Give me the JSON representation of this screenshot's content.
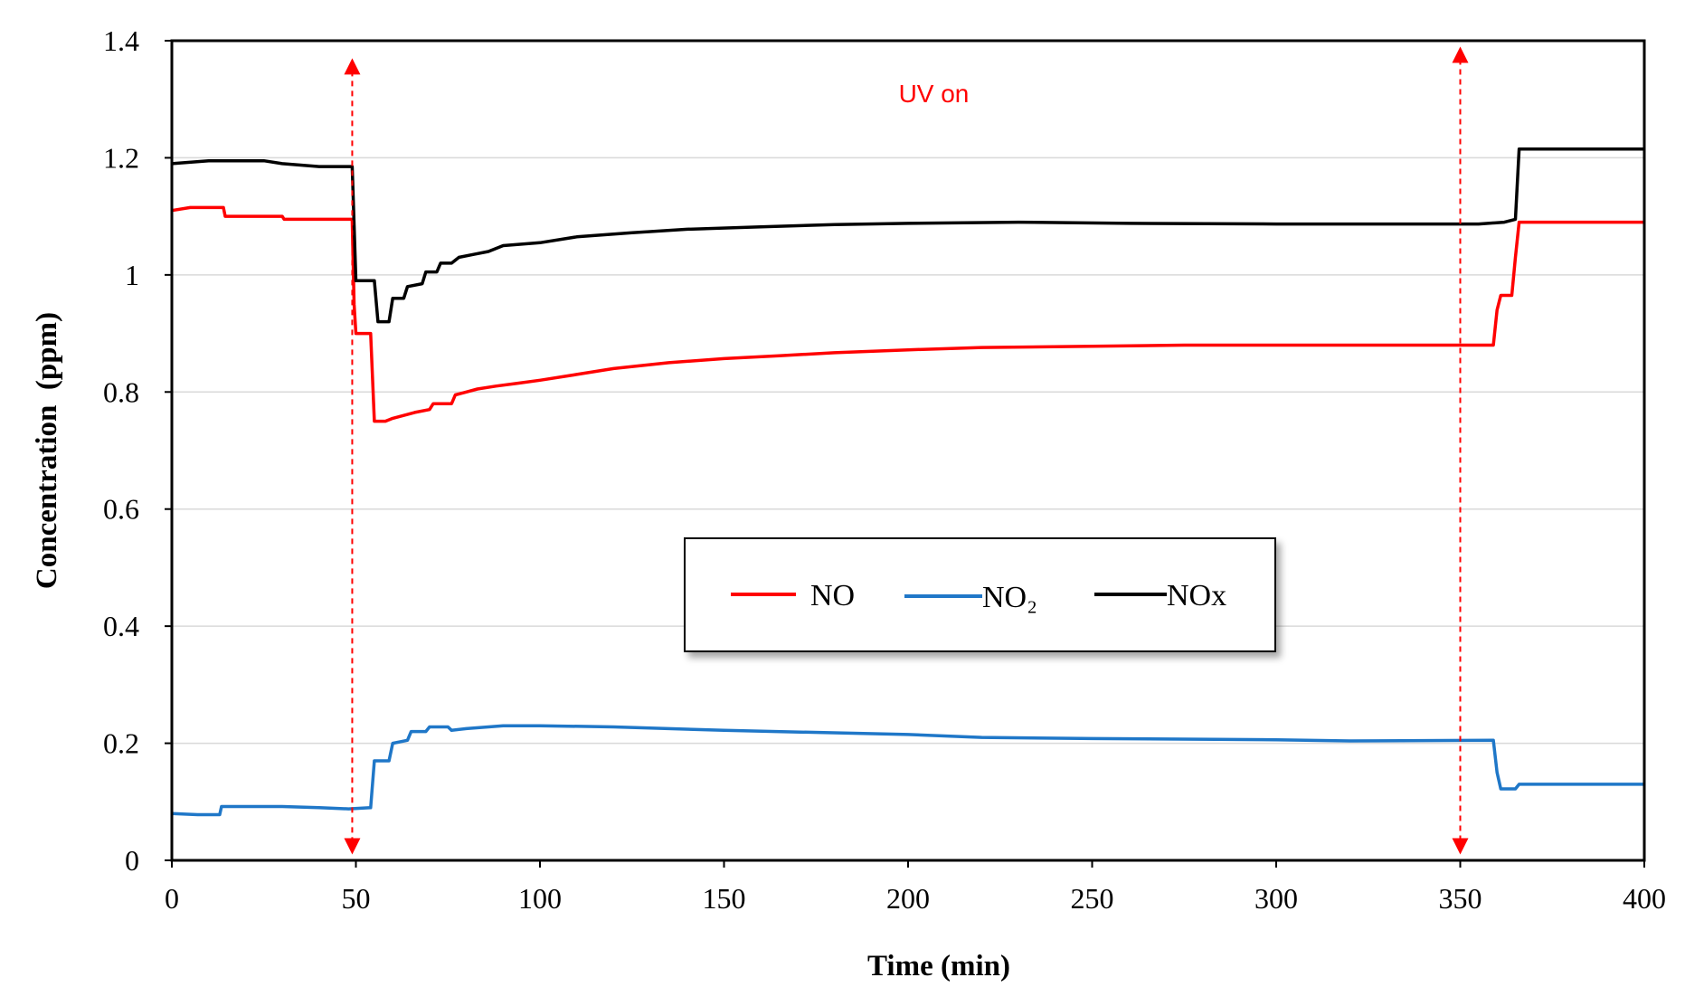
{
  "chart_data": {
    "type": "line",
    "title": "",
    "xlabel": "Time (min)",
    "ylabel": "Concentration  (ppm)",
    "xlim": [
      0,
      400
    ],
    "ylim": [
      0,
      1.4
    ],
    "xticks": [
      0,
      50,
      100,
      150,
      200,
      250,
      300,
      350,
      400
    ],
    "xtick_labels": [
      "0",
      "50",
      "100",
      "150",
      "200",
      "250",
      "300",
      "350",
      "400"
    ],
    "yticks": [
      0,
      0.2,
      0.4,
      0.6,
      0.8,
      1.0,
      1.2,
      1.4
    ],
    "ytick_labels": [
      "0",
      "0.2",
      "0.4",
      "0.6",
      "0.8",
      "1",
      "1.2",
      "1.4"
    ],
    "grid": "horizontal",
    "legend_position": "center",
    "annotation": {
      "text": "UV on",
      "x": 207,
      "y": 1.31,
      "color": "#ff0000"
    },
    "markers": [
      {
        "x": 49,
        "y_from": 0.01,
        "y_to": 1.37,
        "color": "#ff0000",
        "style": "dashed double-arrow"
      },
      {
        "x": 350,
        "y_from": 0.01,
        "y_to": 1.39,
        "color": "#ff0000",
        "style": "dashed double-arrow"
      }
    ],
    "series": [
      {
        "name": "NO",
        "color": "#ff0000",
        "points": [
          [
            0,
            1.11
          ],
          [
            5,
            1.115
          ],
          [
            14,
            1.115
          ],
          [
            14.5,
            1.1
          ],
          [
            30,
            1.1
          ],
          [
            30.5,
            1.095
          ],
          [
            49,
            1.095
          ],
          [
            49.5,
            0.95
          ],
          [
            50,
            0.9
          ],
          [
            54,
            0.9
          ],
          [
            55,
            0.75
          ],
          [
            58,
            0.75
          ],
          [
            60,
            0.755
          ],
          [
            63,
            0.76
          ],
          [
            66,
            0.765
          ],
          [
            70,
            0.77
          ],
          [
            71,
            0.78
          ],
          [
            76,
            0.78
          ],
          [
            77,
            0.795
          ],
          [
            80,
            0.8
          ],
          [
            83,
            0.805
          ],
          [
            88,
            0.81
          ],
          [
            94,
            0.815
          ],
          [
            100,
            0.82
          ],
          [
            110,
            0.83
          ],
          [
            120,
            0.84
          ],
          [
            135,
            0.85
          ],
          [
            150,
            0.857
          ],
          [
            165,
            0.862
          ],
          [
            180,
            0.867
          ],
          [
            200,
            0.872
          ],
          [
            220,
            0.876
          ],
          [
            250,
            0.878
          ],
          [
            275,
            0.88
          ],
          [
            300,
            0.88
          ],
          [
            330,
            0.88
          ],
          [
            359,
            0.88
          ],
          [
            360,
            0.94
          ],
          [
            361,
            0.965
          ],
          [
            364,
            0.965
          ],
          [
            365,
            1.03
          ],
          [
            366,
            1.09
          ],
          [
            400,
            1.09
          ]
        ]
      },
      {
        "name": "NO₂",
        "color": "#1f77c8",
        "points": [
          [
            0,
            0.08
          ],
          [
            7,
            0.078
          ],
          [
            13,
            0.078
          ],
          [
            13.5,
            0.092
          ],
          [
            30,
            0.092
          ],
          [
            40,
            0.09
          ],
          [
            48,
            0.088
          ],
          [
            54,
            0.09
          ],
          [
            55,
            0.17
          ],
          [
            59,
            0.17
          ],
          [
            60,
            0.2
          ],
          [
            64,
            0.205
          ],
          [
            65,
            0.22
          ],
          [
            69,
            0.22
          ],
          [
            70,
            0.228
          ],
          [
            75,
            0.228
          ],
          [
            76,
            0.222
          ],
          [
            80,
            0.225
          ],
          [
            90,
            0.23
          ],
          [
            100,
            0.23
          ],
          [
            120,
            0.228
          ],
          [
            150,
            0.222
          ],
          [
            200,
            0.215
          ],
          [
            220,
            0.21
          ],
          [
            250,
            0.208
          ],
          [
            300,
            0.206
          ],
          [
            320,
            0.204
          ],
          [
            359,
            0.205
          ],
          [
            360,
            0.15
          ],
          [
            361,
            0.122
          ],
          [
            365,
            0.122
          ],
          [
            366,
            0.13
          ],
          [
            400,
            0.13
          ]
        ]
      },
      {
        "name": "NOx",
        "color": "#000000",
        "points": [
          [
            0,
            1.19
          ],
          [
            10,
            1.195
          ],
          [
            25,
            1.195
          ],
          [
            30,
            1.19
          ],
          [
            40,
            1.185
          ],
          [
            49,
            1.185
          ],
          [
            50,
            0.99
          ],
          [
            55,
            0.99
          ],
          [
            56,
            0.92
          ],
          [
            59,
            0.92
          ],
          [
            60,
            0.96
          ],
          [
            63,
            0.96
          ],
          [
            64,
            0.98
          ],
          [
            68,
            0.985
          ],
          [
            69,
            1.005
          ],
          [
            72,
            1.005
          ],
          [
            73,
            1.02
          ],
          [
            76,
            1.02
          ],
          [
            78,
            1.03
          ],
          [
            82,
            1.035
          ],
          [
            86,
            1.04
          ],
          [
            90,
            1.05
          ],
          [
            100,
            1.055
          ],
          [
            110,
            1.065
          ],
          [
            125,
            1.072
          ],
          [
            140,
            1.078
          ],
          [
            160,
            1.082
          ],
          [
            180,
            1.086
          ],
          [
            200,
            1.088
          ],
          [
            230,
            1.09
          ],
          [
            260,
            1.088
          ],
          [
            300,
            1.087
          ],
          [
            350,
            1.087
          ],
          [
            355,
            1.087
          ],
          [
            362,
            1.09
          ],
          [
            365,
            1.095
          ],
          [
            366,
            1.215
          ],
          [
            400,
            1.215
          ]
        ]
      }
    ],
    "legend": [
      {
        "label": "NO",
        "color": "#ff0000"
      },
      {
        "label": "NO₂",
        "color": "#1f77c8"
      },
      {
        "label": "NOx",
        "color": "#000000"
      }
    ]
  }
}
